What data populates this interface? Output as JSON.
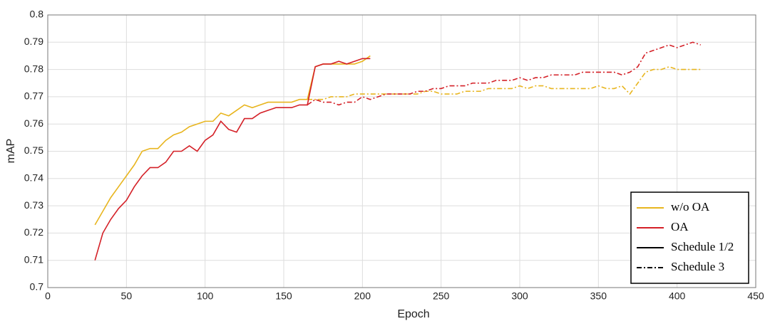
{
  "chart_data": {
    "type": "line",
    "xlabel": "Epoch",
    "ylabel": "mAP",
    "xlim": [
      0,
      450
    ],
    "xticks": [
      0,
      50,
      100,
      150,
      200,
      250,
      300,
      350,
      400,
      450
    ],
    "ylim": [
      0.7,
      0.8
    ],
    "yticks": [
      0.7,
      0.71,
      0.72,
      0.73,
      0.74,
      0.75,
      0.76,
      0.77,
      0.78,
      0.79,
      0.8
    ],
    "grid": true,
    "legend_position": "lower right",
    "styles": [
      {
        "name": "Schedule 1/2",
        "dash": "solid"
      },
      {
        "name": "Schedule 3",
        "dash": "dashdot"
      }
    ],
    "series": [
      {
        "name": "w/o OA",
        "color": "#e8b51e",
        "lines": [
          {
            "x": [
              30,
              35,
              40,
              45,
              50,
              55,
              60,
              65,
              70,
              75,
              80,
              85,
              90,
              95,
              100,
              105,
              110,
              115,
              120,
              125,
              130,
              135,
              140,
              145,
              150,
              155,
              160,
              165,
              170,
              175,
              180,
              185,
              190,
              195,
              200,
              205
            ],
            "values": [
              0.723,
              0.728,
              0.733,
              0.737,
              0.741,
              0.745,
              0.75,
              0.751,
              0.751,
              0.754,
              0.756,
              0.757,
              0.759,
              0.76,
              0.761,
              0.761,
              0.764,
              0.763,
              0.765,
              0.767,
              0.766,
              0.767,
              0.768,
              0.768,
              0.768,
              0.768,
              0.769,
              0.769,
              0.781,
              0.782,
              0.782,
              0.782,
              0.782,
              0.782,
              0.783,
              0.785
            ]
          },
          {
            "x": [
              165,
              170,
              175,
              180,
              185,
              190,
              195,
              200,
              205,
              210,
              215,
              220,
              225,
              230,
              235,
              240,
              245,
              250,
              255,
              260,
              265,
              270,
              275,
              280,
              285,
              290,
              295,
              300,
              305,
              310,
              315,
              320,
              325,
              330,
              335,
              340,
              345,
              350,
              355,
              360,
              365,
              370,
              375,
              380,
              385,
              390,
              395,
              400,
              405,
              410,
              415
            ],
            "values": [
              0.769,
              0.769,
              0.769,
              0.77,
              0.77,
              0.77,
              0.771,
              0.771,
              0.771,
              0.771,
              0.771,
              0.771,
              0.771,
              0.771,
              0.771,
              0.772,
              0.772,
              0.771,
              0.771,
              0.771,
              0.772,
              0.772,
              0.772,
              0.773,
              0.773,
              0.773,
              0.773,
              0.774,
              0.773,
              0.774,
              0.774,
              0.773,
              0.773,
              0.773,
              0.773,
              0.773,
              0.773,
              0.774,
              0.773,
              0.773,
              0.774,
              0.771,
              0.775,
              0.779,
              0.78,
              0.78,
              0.781,
              0.78,
              0.78,
              0.78,
              0.78
            ]
          }
        ]
      },
      {
        "name": "OA",
        "color": "#d42027",
        "lines": [
          {
            "x": [
              30,
              35,
              40,
              45,
              50,
              55,
              60,
              65,
              70,
              75,
              80,
              85,
              90,
              95,
              100,
              105,
              110,
              115,
              120,
              125,
              130,
              135,
              140,
              145,
              150,
              155,
              160,
              165,
              170,
              175,
              180,
              185,
              190,
              195,
              200,
              205
            ],
            "values": [
              0.71,
              0.72,
              0.725,
              0.729,
              0.732,
              0.737,
              0.741,
              0.744,
              0.744,
              0.746,
              0.75,
              0.75,
              0.752,
              0.75,
              0.754,
              0.756,
              0.761,
              0.758,
              0.757,
              0.762,
              0.762,
              0.764,
              0.765,
              0.766,
              0.766,
              0.766,
              0.767,
              0.767,
              0.781,
              0.782,
              0.782,
              0.783,
              0.782,
              0.783,
              0.784,
              0.784
            ]
          },
          {
            "x": [
              165,
              170,
              175,
              180,
              185,
              190,
              195,
              200,
              205,
              210,
              215,
              220,
              225,
              230,
              235,
              240,
              245,
              250,
              255,
              260,
              265,
              270,
              275,
              280,
              285,
              290,
              295,
              300,
              305,
              310,
              315,
              320,
              325,
              330,
              335,
              340,
              345,
              350,
              355,
              360,
              365,
              370,
              375,
              380,
              385,
              390,
              395,
              400,
              405,
              410,
              415
            ],
            "values": [
              0.767,
              0.769,
              0.768,
              0.768,
              0.767,
              0.768,
              0.768,
              0.77,
              0.769,
              0.77,
              0.771,
              0.771,
              0.771,
              0.771,
              0.772,
              0.772,
              0.773,
              0.773,
              0.774,
              0.774,
              0.774,
              0.775,
              0.775,
              0.775,
              0.776,
              0.776,
              0.776,
              0.777,
              0.776,
              0.777,
              0.777,
              0.778,
              0.778,
              0.778,
              0.778,
              0.779,
              0.779,
              0.779,
              0.779,
              0.779,
              0.778,
              0.779,
              0.781,
              0.786,
              0.787,
              0.788,
              0.789,
              0.788,
              0.789,
              0.79,
              0.789
            ]
          }
        ]
      }
    ]
  }
}
